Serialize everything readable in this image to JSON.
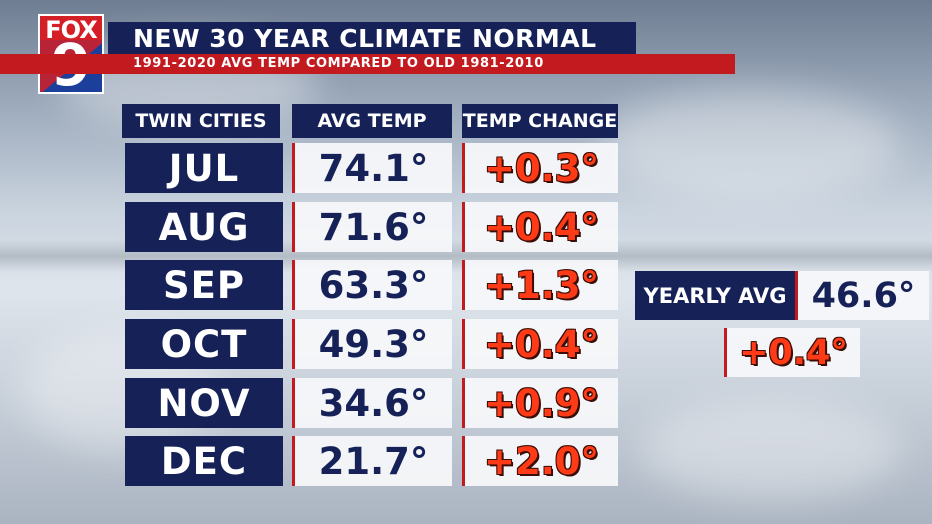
{
  "logo": {
    "top_text": "FOX",
    "number": "9",
    "colors": {
      "red": "#d51f26",
      "blue": "#1d3f9c"
    }
  },
  "title": "NEW 30 YEAR CLIMATE NORMAL",
  "subtitle": "1991-2020 AVG TEMP COMPARED TO OLD 1981-2010",
  "table": {
    "headers": [
      "TWIN CITIES",
      "AVG TEMP",
      "TEMP CHANGE"
    ],
    "rows": [
      {
        "month": "JUL",
        "avg": "74.1°",
        "change": "+0.3°"
      },
      {
        "month": "AUG",
        "avg": "71.6°",
        "change": "+0.4°"
      },
      {
        "month": "SEP",
        "avg": "63.3°",
        "change": "+1.3°"
      },
      {
        "month": "OCT",
        "avg": "49.3°",
        "change": "+0.4°"
      },
      {
        "month": "NOV",
        "avg": "34.6°",
        "change": "+0.9°"
      },
      {
        "month": "DEC",
        "avg": "21.7°",
        "change": "+2.0°"
      }
    ]
  },
  "yearly": {
    "label": "YEARLY AVG",
    "avg": "46.6°",
    "change": "+0.4°"
  },
  "colors": {
    "navy": "#162158",
    "accent_red": "#c31a20",
    "change_text": "#ff3b17"
  }
}
